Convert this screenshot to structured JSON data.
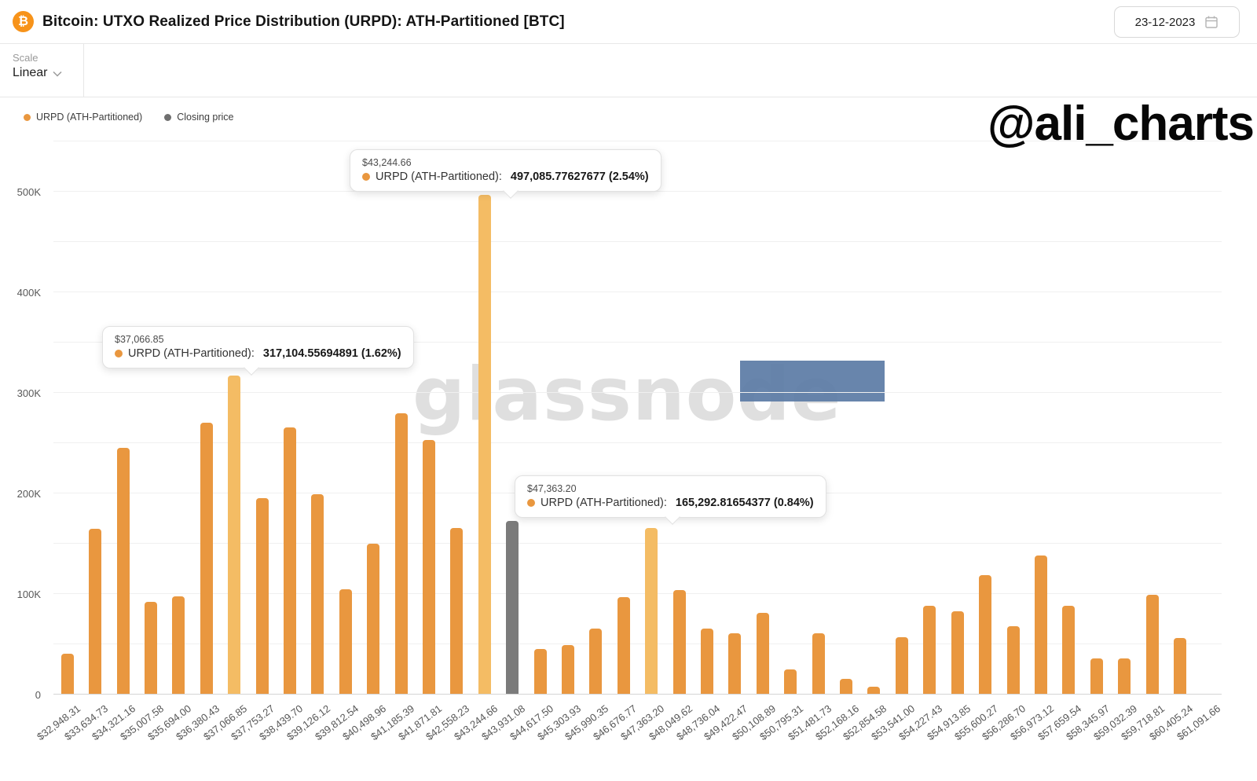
{
  "header": {
    "title": "Bitcoin: UTXO Realized Price Distribution (URPD): ATH-Partitioned [BTC]",
    "bitcoin_glyph": "₿",
    "date": "23-12-2023"
  },
  "scale": {
    "label": "Scale",
    "value": "Linear"
  },
  "legend": [
    {
      "label": "URPD (ATH-Partitioned)",
      "color": "#e9973f"
    },
    {
      "label": "Closing price",
      "color": "#6f6f6f"
    }
  ],
  "watermarks": {
    "center": "glassnode",
    "handle": "@ali_charts"
  },
  "tooltips": [
    {
      "price": "$43,244.66",
      "series": "URPD (ATH-Partitioned):",
      "value": "497,085.77627677 (2.54%)"
    },
    {
      "price": "$37,066.85",
      "series": "URPD (ATH-Partitioned):",
      "value": "317,104.55694891 (1.62%)"
    },
    {
      "price": "$47,363.20",
      "series": "URPD (ATH-Partitioned):",
      "value": "165,292.81654377 (0.84%)"
    }
  ],
  "chart_data": {
    "type": "bar",
    "title": "Bitcoin: UTXO Realized Price Distribution (URPD): ATH-Partitioned [BTC]",
    "xlabel": "",
    "ylabel": "",
    "categories": [
      "$32,948.31",
      "$33,634.73",
      "$34,321.16",
      "$35,007.58",
      "$35,694.00",
      "$36,380.43",
      "$37,066.85",
      "$37,753.27",
      "$38,439.70",
      "$39,126.12",
      "$39,812.54",
      "$40,498.96",
      "$41,185.39",
      "$41,871.81",
      "$42,558.23",
      "$43,244.66",
      "$43,931.08",
      "$44,617.50",
      "$45,303.93",
      "$45,990.35",
      "$46,676.77",
      "$47,363.20",
      "$48,049.62",
      "$48,736.04",
      "$49,422.47",
      "$50,108.89",
      "$50,795.31",
      "$51,481.73",
      "$52,168.16",
      "$52,854.58",
      "$53,541.00",
      "$54,227.43",
      "$54,913.85",
      "$55,600.27",
      "$56,286.70",
      "$56,973.12",
      "$57,659.54",
      "$58,345.97",
      "$59,032.39",
      "$59,718.81",
      "$60,405.24",
      "$61,091.66"
    ],
    "values": [
      41000,
      165000,
      245000,
      92000,
      98000,
      270000,
      317104.55694891,
      195000,
      266000,
      199000,
      105000,
      150000,
      280000,
      253000,
      166000,
      497085.77627677,
      173000,
      45000,
      49000,
      66000,
      97000,
      165292.81654377,
      104000,
      66000,
      61000,
      81000,
      25000,
      61000,
      16000,
      8000,
      57000,
      88000,
      83000,
      119000,
      68000,
      138000,
      88000,
      36000,
      36000,
      99000,
      56000,
      0
    ],
    "series_name": "URPD (ATH-Partitioned)",
    "closing_series_name": "Closing price",
    "highlight_indices": [
      6,
      15,
      21
    ],
    "closing_price_index": 16,
    "colors": {
      "bar": "#e9973f",
      "bar_highlight": "#f4bc64",
      "closing": "#7b7b7b"
    },
    "ylim": [
      0,
      550000
    ],
    "ytick_step": 100000,
    "grid_step": 50000,
    "yticks": [
      "0",
      "100K",
      "200K",
      "300K",
      "400K",
      "500K"
    ],
    "legend_position": "top-left",
    "grid": "horizontal"
  }
}
